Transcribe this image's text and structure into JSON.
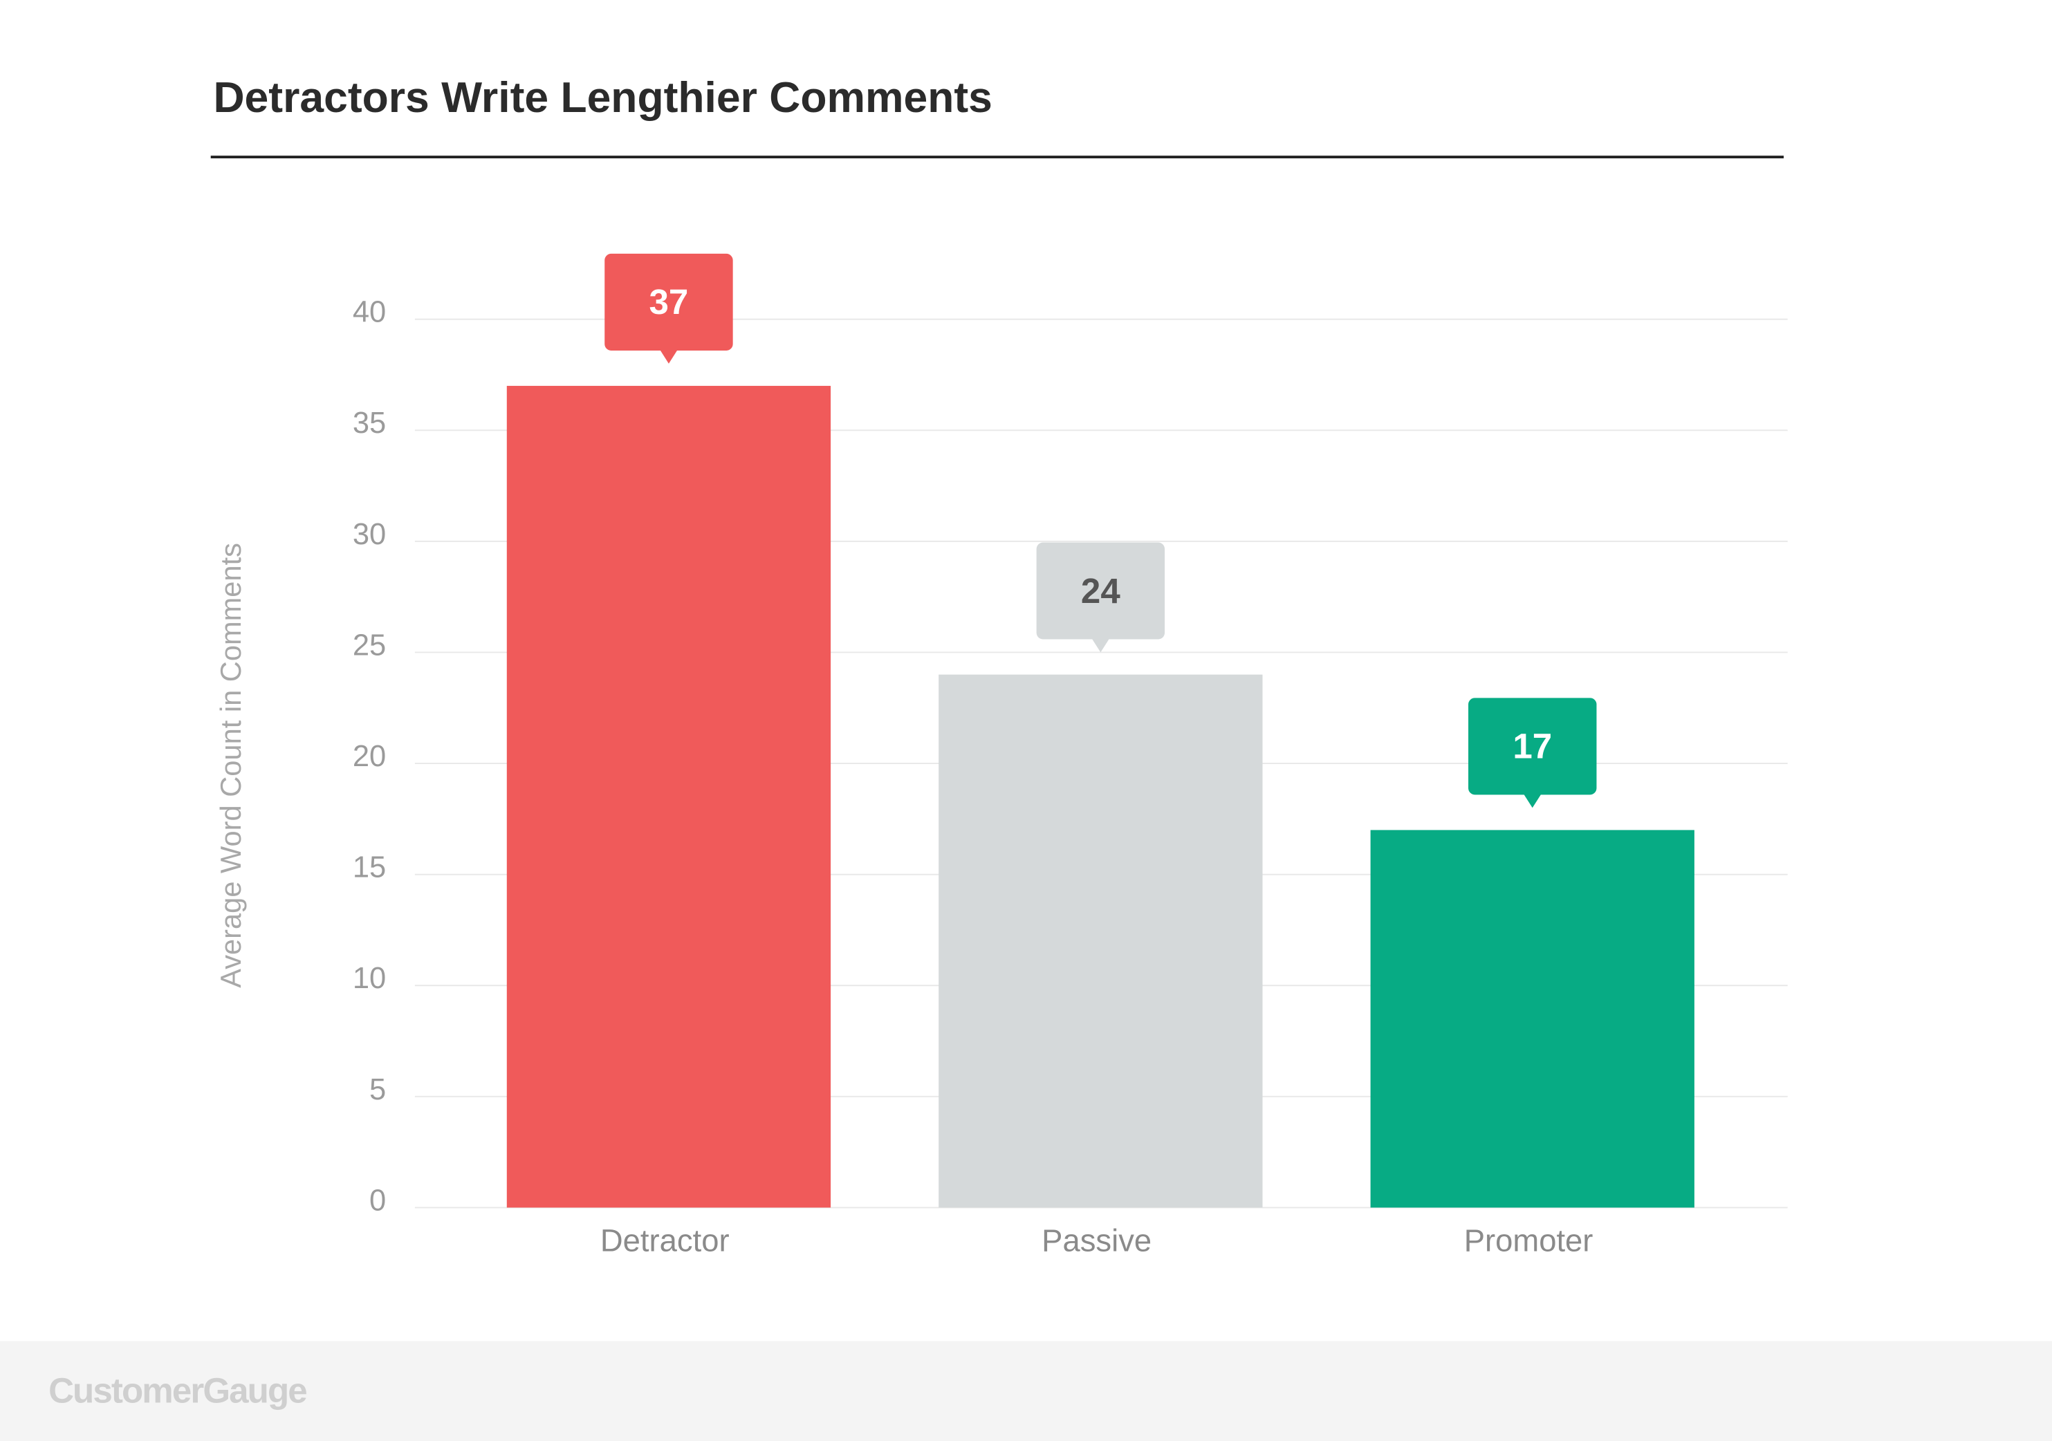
{
  "chart_data": {
    "type": "bar",
    "title": "Detractors Write Lengthier Comments",
    "y_label": "Average Word Count in Comments",
    "categories": [
      "Detractor",
      "Passive",
      "Promoter"
    ],
    "values": [
      37,
      24,
      17
    ],
    "colors": [
      "#f05a5a",
      "#d5d9da",
      "#07ab84"
    ],
    "value_label_colors": [
      "#ffffff",
      "#555555",
      "#ffffff"
    ],
    "ylim": [
      0,
      40
    ],
    "yticks": [
      0,
      5,
      10,
      15,
      20,
      25,
      30,
      35,
      40
    ],
    "grid": true
  },
  "footer": {
    "brand": "CustomerGauge"
  }
}
